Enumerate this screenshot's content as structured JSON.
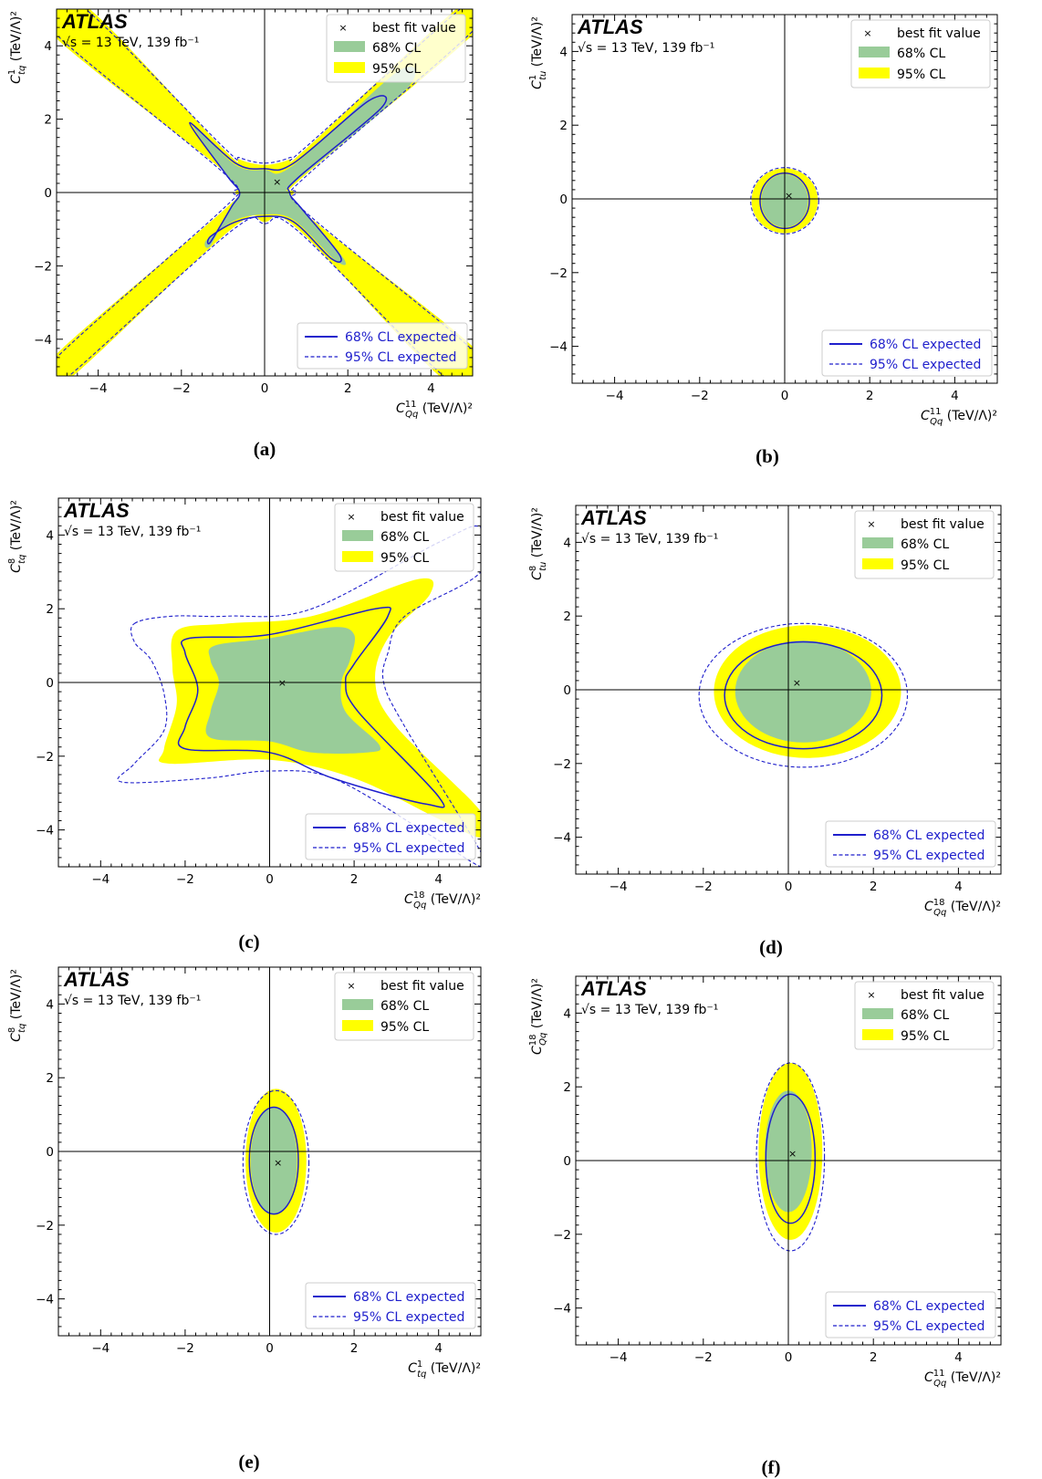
{
  "figure": {
    "experiment": "ATLAS",
    "energy_label": "√s = 13 TeV, 139 fb⁻¹",
    "legend_top": {
      "best_fit": "best fit value",
      "cl68": "68% CL",
      "cl95": "95% CL"
    },
    "legend_bottom": {
      "exp68": "68% CL expected",
      "exp95": "95% CL expected"
    },
    "colors": {
      "cl68": "#99cc99",
      "cl95": "#ffff00",
      "expected": "#1f1fcc",
      "axes": "#000000"
    },
    "unit": "(TeV/Λ)²"
  },
  "chart_data": [
    {
      "id": "a",
      "caption": "(a)",
      "type": "contour",
      "xlabel": {
        "sym": "C",
        "sup": "11",
        "sub": "Qq"
      },
      "ylabel": {
        "sym": "C",
        "sup": "1",
        "sub": "tq"
      },
      "xlim": [
        -5,
        5
      ],
      "ylim": [
        -5,
        5
      ],
      "xticks": [
        -4,
        -2,
        0,
        2,
        4
      ],
      "yticks": [
        -4,
        -2,
        0,
        2,
        4
      ],
      "best_fit": [
        0.3,
        0.3
      ],
      "cl95": [
        [
          -5.0,
          5.0
        ],
        [
          -4.2,
          5.0
        ],
        [
          -1.0,
          1.2
        ],
        [
          -0.6,
          0.9
        ],
        [
          0.0,
          0.75
        ],
        [
          0.6,
          0.9
        ],
        [
          1.0,
          1.2
        ],
        [
          4.6,
          5.0
        ],
        [
          5.0,
          5.0
        ],
        [
          5.0,
          4.3
        ],
        [
          1.0,
          0.5
        ],
        [
          0.7,
          0.0
        ],
        [
          1.0,
          -0.6
        ],
        [
          5.0,
          -4.2
        ],
        [
          5.0,
          -5.0
        ],
        [
          4.2,
          -5.0
        ],
        [
          0.8,
          -1.0
        ],
        [
          0.0,
          -0.8
        ],
        [
          -0.8,
          -1.0
        ],
        [
          -4.6,
          -5.0
        ],
        [
          -5.0,
          -5.0
        ],
        [
          -5.0,
          -4.4
        ],
        [
          -1.0,
          -0.5
        ],
        [
          -0.7,
          0.0
        ],
        [
          -1.0,
          0.6
        ],
        [
          -5.0,
          4.2
        ]
      ],
      "cl68": [
        [
          -1.7,
          1.8
        ],
        [
          -0.7,
          0.75
        ],
        [
          0.0,
          0.62
        ],
        [
          0.7,
          0.75
        ],
        [
          3.2,
          3.3
        ],
        [
          3.4,
          2.8
        ],
        [
          0.8,
          0.35
        ],
        [
          0.6,
          0.0
        ],
        [
          0.9,
          -0.45
        ],
        [
          1.9,
          -1.8
        ],
        [
          1.7,
          -1.85
        ],
        [
          0.7,
          -0.75
        ],
        [
          0.0,
          -0.6
        ],
        [
          -0.7,
          -0.75
        ],
        [
          -1.4,
          -1.3
        ],
        [
          -1.3,
          -1.45
        ],
        [
          -0.8,
          -0.35
        ],
        [
          -0.6,
          0.0
        ],
        [
          -0.9,
          0.45
        ]
      ],
      "exp68": [
        [
          -1.8,
          1.9
        ],
        [
          -0.7,
          0.8
        ],
        [
          0.0,
          0.65
        ],
        [
          0.7,
          0.8
        ],
        [
          2.5,
          2.5
        ],
        [
          2.8,
          2.3
        ],
        [
          0.8,
          0.4
        ],
        [
          0.6,
          0.0
        ],
        [
          0.9,
          -0.45
        ],
        [
          1.8,
          -1.7
        ],
        [
          1.6,
          -1.8
        ],
        [
          0.7,
          -0.8
        ],
        [
          0.0,
          -0.65
        ],
        [
          -0.7,
          -0.8
        ],
        [
          -1.3,
          -1.2
        ],
        [
          -1.3,
          -1.35
        ],
        [
          -0.8,
          -0.4
        ],
        [
          -0.6,
          0.0
        ],
        [
          -0.9,
          0.45
        ]
      ],
      "exp95": [
        [
          -5.0,
          5.0
        ],
        [
          -4.3,
          5.0
        ],
        [
          -1.0,
          1.25
        ],
        [
          -0.6,
          0.95
        ],
        [
          0.0,
          0.8
        ],
        [
          0.6,
          0.95
        ],
        [
          1.0,
          1.25
        ],
        [
          4.7,
          5.0
        ],
        [
          5.0,
          5.0
        ],
        [
          5.0,
          4.4
        ],
        [
          1.05,
          0.5
        ],
        [
          0.75,
          0.0
        ],
        [
          1.05,
          -0.6
        ],
        [
          5.0,
          -4.3
        ],
        [
          5.0,
          -5.0
        ],
        [
          4.3,
          -5.0
        ],
        [
          0.8,
          -1.05
        ],
        [
          0.0,
          -0.85
        ],
        [
          -0.8,
          -1.05
        ],
        [
          -4.7,
          -5.0
        ],
        [
          -5.0,
          -5.0
        ],
        [
          -5.0,
          -4.5
        ],
        [
          -1.05,
          -0.5
        ],
        [
          -0.75,
          0.0
        ],
        [
          -1.05,
          0.6
        ],
        [
          -5.0,
          4.3
        ]
      ]
    },
    {
      "id": "b",
      "caption": "(b)",
      "type": "contour",
      "xlabel": {
        "sym": "C",
        "sup": "11",
        "sub": "Qq"
      },
      "ylabel": {
        "sym": "C",
        "sup": "1",
        "sub": "tu"
      },
      "xlim": [
        -5,
        5
      ],
      "ylim": [
        -5,
        5
      ],
      "xticks": [
        -4,
        -2,
        0,
        2,
        4
      ],
      "yticks": [
        -4,
        -2,
        0,
        2,
        4
      ],
      "best_fit": [
        0.1,
        0.1
      ],
      "ell95": {
        "cx": 0.0,
        "cy": -0.05,
        "rx": 0.78,
        "ry": 0.88
      },
      "ell68": {
        "cx": 0.0,
        "cy": -0.05,
        "rx": 0.55,
        "ry": 0.72
      },
      "ell_exp68": {
        "cx": 0.0,
        "cy": -0.05,
        "rx": 0.58,
        "ry": 0.75
      },
      "ell_exp95": {
        "cx": 0.0,
        "cy": -0.05,
        "rx": 0.8,
        "ry": 0.9
      }
    },
    {
      "id": "c",
      "caption": "(c)",
      "type": "contour",
      "xlabel": {
        "sym": "C",
        "sup": "18",
        "sub": "Qq"
      },
      "ylabel": {
        "sym": "C",
        "sup": "8",
        "sub": "tq"
      },
      "xlim": [
        -5,
        5
      ],
      "ylim": [
        -5,
        5
      ],
      "xticks": [
        -4,
        -2,
        0,
        2,
        4
      ],
      "yticks": [
        -4,
        -2,
        0,
        2,
        4
      ],
      "best_fit": [
        0.3,
        0.0
      ],
      "cl95": [
        [
          -2.2,
          1.4
        ],
        [
          -1.0,
          1.6
        ],
        [
          1.0,
          1.8
        ],
        [
          3.5,
          2.8
        ],
        [
          3.8,
          2.4
        ],
        [
          2.8,
          1.2
        ],
        [
          2.5,
          0.0
        ],
        [
          3.0,
          -1.2
        ],
        [
          5.0,
          -3.5
        ],
        [
          5.0,
          -4.2
        ],
        [
          4.0,
          -3.7
        ],
        [
          2.0,
          -2.6
        ],
        [
          0.0,
          -2.1
        ],
        [
          -2.4,
          -2.2
        ],
        [
          -2.5,
          -1.8
        ],
        [
          -2.2,
          -0.6
        ],
        [
          -2.3,
          0.4
        ]
      ],
      "cl68": [
        [
          -1.3,
          1.0
        ],
        [
          0.0,
          1.2
        ],
        [
          1.5,
          1.5
        ],
        [
          2.0,
          1.3
        ],
        [
          1.9,
          0.6
        ],
        [
          1.7,
          0.0
        ],
        [
          1.8,
          -0.8
        ],
        [
          2.6,
          -1.7
        ],
        [
          2.3,
          -1.9
        ],
        [
          1.0,
          -1.9
        ],
        [
          0.0,
          -1.6
        ],
        [
          -1.4,
          -1.5
        ],
        [
          -1.4,
          -0.8
        ],
        [
          -1.2,
          0.0
        ],
        [
          -1.4,
          0.6
        ]
      ],
      "exp68": [
        [
          -1.9,
          1.2
        ],
        [
          0.0,
          1.3
        ],
        [
          2.5,
          2.0
        ],
        [
          2.8,
          1.8
        ],
        [
          2.0,
          0.5
        ],
        [
          1.8,
          0.0
        ],
        [
          2.1,
          -0.8
        ],
        [
          4.0,
          -3.1
        ],
        [
          3.7,
          -3.3
        ],
        [
          1.5,
          -2.6
        ],
        [
          0.0,
          -1.9
        ],
        [
          -2.0,
          -1.8
        ],
        [
          -2.0,
          -1.2
        ],
        [
          -1.7,
          -0.2
        ],
        [
          -2.0,
          0.8
        ]
      ],
      "exp95": [
        [
          -3.2,
          1.6
        ],
        [
          -2.3,
          1.8
        ],
        [
          -1.0,
          1.8
        ],
        [
          1.0,
          2.0
        ],
        [
          4.0,
          3.8
        ],
        [
          5.0,
          4.2
        ],
        [
          5.0,
          3.0
        ],
        [
          3.2,
          1.8
        ],
        [
          2.8,
          0.8
        ],
        [
          2.7,
          0.0
        ],
        [
          3.2,
          -1.2
        ],
        [
          5.0,
          -4.6
        ],
        [
          5.0,
          -5.0
        ],
        [
          3.6,
          -4.0
        ],
        [
          1.5,
          -2.6
        ],
        [
          0.0,
          -2.4
        ],
        [
          -1.5,
          -2.6
        ],
        [
          -3.5,
          -2.7
        ],
        [
          -3.2,
          -2.2
        ],
        [
          -2.5,
          -1.3
        ],
        [
          -2.5,
          -0.3
        ],
        [
          -2.8,
          0.6
        ],
        [
          -3.2,
          1.1
        ]
      ]
    },
    {
      "id": "d",
      "caption": "(d)",
      "type": "contour",
      "xlabel": {
        "sym": "C",
        "sup": "18",
        "sub": "Qq"
      },
      "ylabel": {
        "sym": "C",
        "sup": "8",
        "sub": "tu"
      },
      "xlim": [
        -5,
        5
      ],
      "ylim": [
        -5,
        5
      ],
      "xticks": [
        -4,
        -2,
        0,
        2,
        4
      ],
      "yticks": [
        -4,
        -2,
        0,
        2,
        4
      ],
      "best_fit": [
        0.2,
        0.2
      ],
      "ell95": {
        "cx": 0.45,
        "cy": -0.05,
        "rx": 2.2,
        "ry": 1.8
      },
      "ell68": {
        "cx": 0.35,
        "cy": -0.05,
        "rx": 1.6,
        "ry": 1.38
      },
      "ell_exp68": {
        "cx": 0.35,
        "cy": -0.15,
        "rx": 1.85,
        "ry": 1.45
      },
      "ell_exp95": {
        "cx": 0.35,
        "cy": -0.15,
        "rx": 2.45,
        "ry": 1.95
      }
    },
    {
      "id": "e",
      "caption": "(e)",
      "type": "contour",
      "xlabel": {
        "sym": "C",
        "sup": "1",
        "sub": "tq"
      },
      "ylabel": {
        "sym": "C",
        "sup": "8",
        "sub": "tq"
      },
      "xlim": [
        -5,
        5
      ],
      "ylim": [
        -5,
        5
      ],
      "xticks": [
        -4,
        -2,
        0,
        2,
        4
      ],
      "yticks": [
        -4,
        -2,
        0,
        2,
        4
      ],
      "best_fit": [
        0.2,
        -0.3
      ],
      "ell95": {
        "cx": 0.15,
        "cy": -0.25,
        "rx": 0.72,
        "ry": 1.95
      },
      "ell68": {
        "cx": 0.1,
        "cy": -0.25,
        "rx": 0.55,
        "ry": 1.45
      },
      "ell_exp68": {
        "cx": 0.1,
        "cy": -0.25,
        "rx": 0.58,
        "ry": 1.45
      },
      "ell_exp95": {
        "cx": 0.15,
        "cy": -0.3,
        "rx": 0.78,
        "ry": 1.95
      }
    },
    {
      "id": "f",
      "caption": "(f)",
      "type": "contour",
      "xlabel": {
        "sym": "C",
        "sup": "11",
        "sub": "Qq"
      },
      "ylabel": {
        "sym": "C",
        "sup": "18",
        "sub": "Qq"
      },
      "xlim": [
        -5,
        5
      ],
      "ylim": [
        -5,
        5
      ],
      "xticks": [
        -4,
        -2,
        0,
        2,
        4
      ],
      "yticks": [
        -4,
        -2,
        0,
        2,
        4
      ],
      "best_fit": [
        0.1,
        0.2
      ],
      "ell95": {
        "cx": 0.05,
        "cy": 0.25,
        "rx": 0.75,
        "ry": 2.4
      },
      "ell68": {
        "cx": 0.0,
        "cy": 0.25,
        "rx": 0.55,
        "ry": 1.65
      },
      "ell_exp68": {
        "cx": 0.05,
        "cy": 0.05,
        "rx": 0.58,
        "ry": 1.75
      },
      "ell_exp95": {
        "cx": 0.05,
        "cy": 0.1,
        "rx": 0.8,
        "ry": 2.55
      }
    }
  ]
}
